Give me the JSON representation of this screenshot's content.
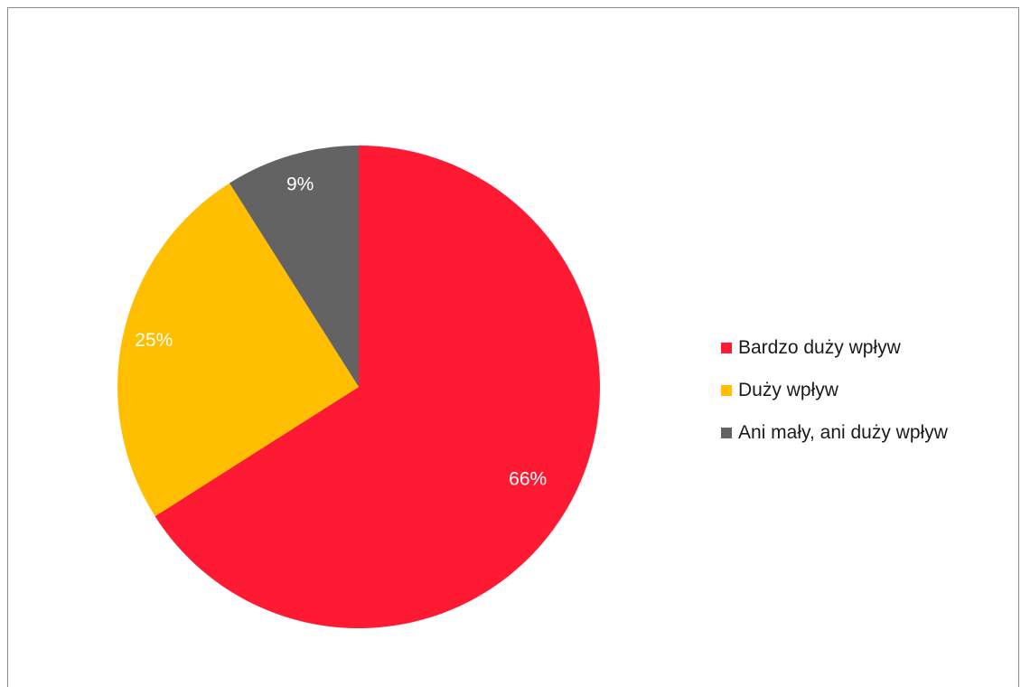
{
  "chart_data": {
    "type": "pie",
    "title": "",
    "start_angle_degrees": 0,
    "direction": "clockwise",
    "legend_position": "right",
    "slices": [
      {
        "label": "Bardzo duży wpływ",
        "value": 66,
        "display": "66%",
        "color": "#ff1a33"
      },
      {
        "label": "Duży wpływ",
        "value": 25,
        "display": "25%",
        "color": "#ffbf00"
      },
      {
        "label": "Ani mały, ani duży wpływ",
        "value": 9,
        "display": "9%",
        "color": "#636363"
      }
    ]
  }
}
